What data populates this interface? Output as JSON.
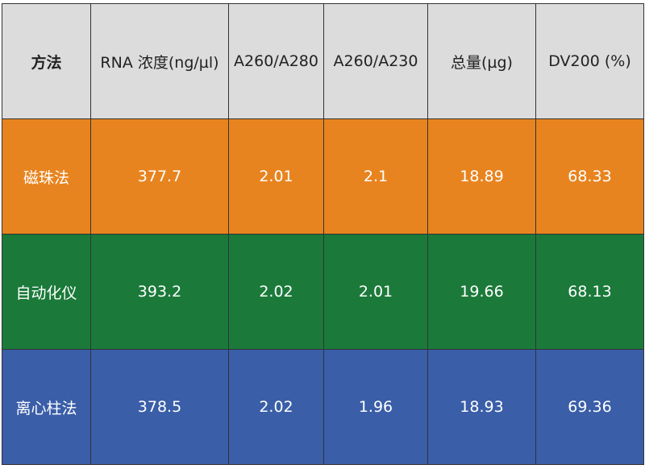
{
  "table": {
    "header": [
      "方法",
      "RNA 浓度(ng/µl)",
      "A260/A280",
      "A260/A230",
      "总量(µg)",
      "DV200 (%)"
    ],
    "rows": [
      [
        "磁珠法",
        "377.7",
        "2.01",
        "2.1",
        "18.89",
        "68.33"
      ],
      [
        "自动化仪",
        "393.2",
        "2.02",
        "2.01",
        "19.66",
        "68.13"
      ],
      [
        "离心柱法",
        "378.5",
        "2.02",
        "1.96",
        "18.93",
        "69.36"
      ]
    ]
  }
}
